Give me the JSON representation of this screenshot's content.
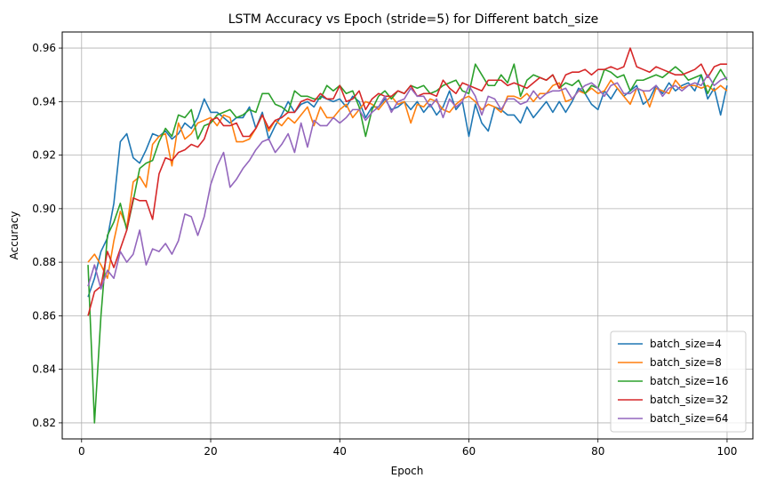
{
  "chart_data": {
    "type": "line",
    "title": "LSTM Accuracy vs Epoch (stride=5) for Different batch_size",
    "xlabel": "Epoch",
    "ylabel": "Accuracy",
    "xlim": [
      -3,
      104
    ],
    "ylim": [
      0.814,
      0.966
    ],
    "xticks": [
      0,
      20,
      40,
      60,
      80,
      100
    ],
    "yticks": [
      0.82,
      0.84,
      0.86,
      0.88,
      0.9,
      0.92,
      0.94,
      0.96
    ],
    "ytick_labels": [
      "0.82",
      "0.84",
      "0.86",
      "0.88",
      "0.90",
      "0.92",
      "0.94",
      "0.96"
    ],
    "grid": true,
    "legend_position": "bottom-right",
    "x": [
      1,
      2,
      3,
      4,
      5,
      6,
      7,
      8,
      9,
      10,
      11,
      12,
      13,
      14,
      15,
      16,
      17,
      18,
      19,
      20,
      21,
      22,
      23,
      24,
      25,
      26,
      27,
      28,
      29,
      30,
      31,
      32,
      33,
      34,
      35,
      36,
      37,
      38,
      39,
      40,
      41,
      42,
      43,
      44,
      45,
      46,
      47,
      48,
      49,
      50,
      51,
      52,
      53,
      54,
      55,
      56,
      57,
      58,
      59,
      60,
      61,
      62,
      63,
      64,
      65,
      66,
      67,
      68,
      69,
      70,
      71,
      72,
      73,
      74,
      75,
      76,
      77,
      78,
      79,
      80,
      81,
      82,
      83,
      84,
      85,
      86,
      87,
      88,
      89,
      90,
      91,
      92,
      93,
      94,
      95,
      96,
      97,
      98,
      99,
      100
    ],
    "series": [
      {
        "name": "batch_size=4",
        "color": "#1f77b4",
        "values": [
          0.867,
          0.874,
          0.884,
          0.889,
          0.902,
          0.925,
          0.928,
          0.919,
          0.917,
          0.922,
          0.928,
          0.927,
          0.929,
          0.926,
          0.928,
          0.932,
          0.93,
          0.934,
          0.941,
          0.936,
          0.936,
          0.934,
          0.932,
          0.934,
          0.934,
          0.938,
          0.93,
          0.936,
          0.926,
          0.931,
          0.935,
          0.94,
          0.936,
          0.939,
          0.94,
          0.938,
          0.942,
          0.941,
          0.94,
          0.941,
          0.938,
          0.942,
          0.94,
          0.934,
          0.938,
          0.938,
          0.941,
          0.937,
          0.938,
          0.94,
          0.937,
          0.94,
          0.936,
          0.939,
          0.935,
          0.938,
          0.944,
          0.937,
          0.94,
          0.927,
          0.939,
          0.932,
          0.929,
          0.938,
          0.937,
          0.935,
          0.935,
          0.932,
          0.938,
          0.934,
          0.937,
          0.94,
          0.936,
          0.94,
          0.936,
          0.94,
          0.945,
          0.943,
          0.939,
          0.937,
          0.944,
          0.941,
          0.945,
          0.942,
          0.944,
          0.946,
          0.939,
          0.941,
          0.946,
          0.943,
          0.947,
          0.944,
          0.946,
          0.947,
          0.944,
          0.95,
          0.941,
          0.945,
          0.935,
          0.946
        ]
      },
      {
        "name": "batch_size=8",
        "color": "#ff7f0e",
        "values": [
          0.88,
          0.883,
          0.879,
          0.874,
          0.888,
          0.899,
          0.893,
          0.91,
          0.912,
          0.908,
          0.924,
          0.927,
          0.928,
          0.916,
          0.932,
          0.926,
          0.928,
          0.932,
          0.933,
          0.934,
          0.931,
          0.935,
          0.934,
          0.925,
          0.925,
          0.926,
          0.93,
          0.935,
          0.929,
          0.933,
          0.931,
          0.934,
          0.932,
          0.935,
          0.938,
          0.931,
          0.938,
          0.934,
          0.934,
          0.937,
          0.939,
          0.934,
          0.937,
          0.94,
          0.939,
          0.937,
          0.94,
          0.942,
          0.939,
          0.94,
          0.932,
          0.939,
          0.938,
          0.941,
          0.94,
          0.937,
          0.936,
          0.939,
          0.941,
          0.942,
          0.94,
          0.937,
          0.939,
          0.938,
          0.936,
          0.942,
          0.942,
          0.941,
          0.943,
          0.94,
          0.943,
          0.943,
          0.946,
          0.947,
          0.94,
          0.941,
          0.944,
          0.943,
          0.945,
          0.943,
          0.944,
          0.948,
          0.945,
          0.942,
          0.939,
          0.945,
          0.944,
          0.938,
          0.945,
          0.944,
          0.943,
          0.948,
          0.945,
          0.946,
          0.946,
          0.945,
          0.946,
          0.944,
          0.946,
          0.944
        ]
      },
      {
        "name": "batch_size=16",
        "color": "#2ca02c",
        "values": [
          0.879,
          0.82,
          0.86,
          0.89,
          0.895,
          0.902,
          0.892,
          0.903,
          0.915,
          0.917,
          0.918,
          0.925,
          0.93,
          0.927,
          0.935,
          0.934,
          0.937,
          0.926,
          0.931,
          0.932,
          0.935,
          0.936,
          0.937,
          0.934,
          0.935,
          0.937,
          0.936,
          0.943,
          0.943,
          0.939,
          0.938,
          0.936,
          0.944,
          0.942,
          0.942,
          0.941,
          0.941,
          0.946,
          0.944,
          0.946,
          0.943,
          0.944,
          0.938,
          0.927,
          0.937,
          0.942,
          0.944,
          0.941,
          0.944,
          0.943,
          0.946,
          0.945,
          0.946,
          0.943,
          0.944,
          0.946,
          0.947,
          0.948,
          0.944,
          0.943,
          0.954,
          0.95,
          0.946,
          0.946,
          0.95,
          0.947,
          0.954,
          0.942,
          0.948,
          0.95,
          0.949,
          0.948,
          0.95,
          0.945,
          0.947,
          0.946,
          0.948,
          0.943,
          0.946,
          0.945,
          0.952,
          0.951,
          0.949,
          0.95,
          0.944,
          0.948,
          0.948,
          0.949,
          0.95,
          0.949,
          0.951,
          0.953,
          0.951,
          0.948,
          0.949,
          0.95,
          0.943,
          0.948,
          0.952,
          0.948
        ]
      },
      {
        "name": "batch_size=32",
        "color": "#d62728",
        "values": [
          0.86,
          0.869,
          0.871,
          0.884,
          0.878,
          0.885,
          0.892,
          0.904,
          0.903,
          0.903,
          0.896,
          0.913,
          0.919,
          0.918,
          0.921,
          0.922,
          0.924,
          0.923,
          0.926,
          0.933,
          0.934,
          0.931,
          0.931,
          0.932,
          0.927,
          0.927,
          0.93,
          0.935,
          0.93,
          0.933,
          0.934,
          0.936,
          0.936,
          0.94,
          0.941,
          0.94,
          0.943,
          0.941,
          0.941,
          0.946,
          0.94,
          0.941,
          0.944,
          0.937,
          0.941,
          0.943,
          0.942,
          0.942,
          0.944,
          0.943,
          0.946,
          0.942,
          0.943,
          0.943,
          0.942,
          0.948,
          0.945,
          0.943,
          0.947,
          0.946,
          0.945,
          0.944,
          0.948,
          0.948,
          0.948,
          0.946,
          0.947,
          0.946,
          0.945,
          0.947,
          0.949,
          0.948,
          0.95,
          0.945,
          0.95,
          0.951,
          0.951,
          0.952,
          0.95,
          0.952,
          0.952,
          0.953,
          0.952,
          0.953,
          0.96,
          0.953,
          0.952,
          0.951,
          0.953,
          0.952,
          0.951,
          0.95,
          0.95,
          0.951,
          0.952,
          0.954,
          0.949,
          0.953,
          0.954,
          0.954
        ]
      },
      {
        "name": "batch_size=64",
        "color": "#9467bd",
        "values": [
          0.871,
          0.879,
          0.87,
          0.877,
          0.874,
          0.884,
          0.88,
          0.883,
          0.892,
          0.879,
          0.885,
          0.884,
          0.887,
          0.883,
          0.888,
          0.898,
          0.897,
          0.89,
          0.897,
          0.909,
          0.916,
          0.921,
          0.908,
          0.911,
          0.915,
          0.918,
          0.922,
          0.925,
          0.926,
          0.921,
          0.924,
          0.928,
          0.921,
          0.932,
          0.923,
          0.933,
          0.931,
          0.931,
          0.934,
          0.932,
          0.934,
          0.937,
          0.937,
          0.933,
          0.936,
          0.938,
          0.942,
          0.936,
          0.94,
          0.941,
          0.945,
          0.942,
          0.942,
          0.938,
          0.941,
          0.934,
          0.941,
          0.938,
          0.94,
          0.946,
          0.942,
          0.935,
          0.942,
          0.941,
          0.937,
          0.941,
          0.941,
          0.939,
          0.94,
          0.944,
          0.941,
          0.943,
          0.944,
          0.944,
          0.945,
          0.941,
          0.944,
          0.946,
          0.947,
          0.945,
          0.942,
          0.946,
          0.947,
          0.943,
          0.943,
          0.945,
          0.944,
          0.944,
          0.946,
          0.942,
          0.945,
          0.946,
          0.944,
          0.946,
          0.947,
          0.946,
          0.95,
          0.946,
          0.948,
          0.949
        ]
      }
    ]
  }
}
